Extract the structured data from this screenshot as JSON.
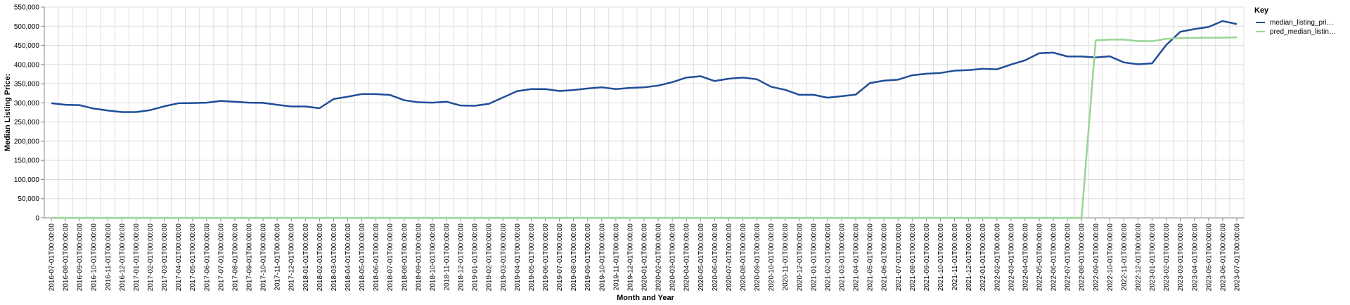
{
  "chart_data": {
    "type": "line",
    "xlabel": "Month and Year",
    "ylabel": "Median Listing Price:",
    "ylim": [
      0,
      550000
    ],
    "y_ticks": [
      "0",
      "50,000",
      "100,000",
      "150,000",
      "200,000",
      "250,000",
      "300,000",
      "350,000",
      "400,000",
      "450,000",
      "500,000",
      "550,000"
    ],
    "grid": true,
    "legend": {
      "title": "Key",
      "position": "right",
      "labels": [
        "median_listing_pri…",
        "pred_median_listin…"
      ]
    },
    "x": [
      "2016-07-01T00:00:00",
      "2016-08-01T00:00:00",
      "2016-09-01T00:00:00",
      "2016-10-01T00:00:00",
      "2016-11-01T00:00:00",
      "2016-12-01T00:00:00",
      "2017-01-01T00:00:00",
      "2017-02-01T00:00:00",
      "2017-03-01T00:00:00",
      "2017-04-01T00:00:00",
      "2017-05-01T00:00:00",
      "2017-06-01T00:00:00",
      "2017-07-01T00:00:00",
      "2017-08-01T00:00:00",
      "2017-09-01T00:00:00",
      "2017-10-01T00:00:00",
      "2017-11-01T00:00:00",
      "2017-12-01T00:00:00",
      "2018-01-01T00:00:00",
      "2018-02-01T00:00:00",
      "2018-03-01T00:00:00",
      "2018-04-01T00:00:00",
      "2018-05-01T00:00:00",
      "2018-06-01T00:00:00",
      "2018-07-01T00:00:00",
      "2018-08-01T00:00:00",
      "2018-09-01T00:00:00",
      "2018-10-01T00:00:00",
      "2018-11-01T00:00:00",
      "2018-12-01T00:00:00",
      "2019-01-01T00:00:00",
      "2019-02-01T00:00:00",
      "2019-03-01T00:00:00",
      "2019-04-01T00:00:00",
      "2019-05-01T00:00:00",
      "2019-06-01T00:00:00",
      "2019-07-01T00:00:00",
      "2019-08-01T00:00:00",
      "2019-09-01T00:00:00",
      "2019-10-01T00:00:00",
      "2019-11-01T00:00:00",
      "2019-12-01T00:00:00",
      "2020-01-01T00:00:00",
      "2020-02-01T00:00:00",
      "2020-03-01T00:00:00",
      "2020-04-01T00:00:00",
      "2020-05-01T00:00:00",
      "2020-06-01T00:00:00",
      "2020-07-01T00:00:00",
      "2020-08-01T00:00:00",
      "2020-09-01T00:00:00",
      "2020-10-01T00:00:00",
      "2020-11-01T00:00:00",
      "2020-12-01T00:00:00",
      "2021-01-01T00:00:00",
      "2021-02-01T00:00:00",
      "2021-03-01T00:00:00",
      "2021-04-01T00:00:00",
      "2021-05-01T00:00:00",
      "2021-06-01T00:00:00",
      "2021-07-01T00:00:00",
      "2021-08-01T00:00:00",
      "2021-09-01T00:00:00",
      "2021-10-01T00:00:00",
      "2021-11-01T00:00:00",
      "2021-12-01T00:00:00",
      "2022-01-01T00:00:00",
      "2022-02-01T00:00:00",
      "2022-03-01T00:00:00",
      "2022-04-01T00:00:00",
      "2022-05-01T00:00:00",
      "2022-06-01T00:00:00",
      "2022-07-01T00:00:00",
      "2022-08-01T00:00:00",
      "2022-09-01T00:00:00",
      "2022-10-01T00:00:00",
      "2022-11-01T00:00:00",
      "2022-12-01T00:00:00",
      "2023-01-01T00:00:00",
      "2023-02-01T00:00:00",
      "2023-03-01T00:00:00",
      "2023-04-01T00:00:00",
      "2023-05-01T00:00:00",
      "2023-06-01T00:00:00",
      "2023-07-01T00:00:00"
    ],
    "series": [
      {
        "name": "median_listing_pri…",
        "color": "#1f4e99",
        "values": [
          299000,
          295000,
          294000,
          285000,
          280000,
          276000,
          276000,
          281000,
          291000,
          299000,
          299500,
          300500,
          305000,
          303000,
          300500,
          300000,
          295000,
          290500,
          290500,
          286000,
          310000,
          316000,
          323000,
          323000,
          320500,
          307000,
          301500,
          300500,
          303000,
          293000,
          292500,
          297500,
          314000,
          330500,
          336000,
          336000,
          331000,
          333500,
          337500,
          340500,
          336000,
          339000,
          340500,
          345000,
          354000,
          366000,
          369500,
          357000,
          363000,
          366000,
          361500,
          342000,
          334000,
          321000,
          321000,
          313500,
          317500,
          321500,
          351500,
          358000,
          360500,
          372000,
          376000,
          378000,
          384000,
          385500,
          389000,
          387500,
          400000,
          411000,
          429500,
          431000,
          421000,
          421000,
          418500,
          421500,
          405500,
          400500,
          403000,
          451000,
          485500,
          492500,
          498000,
          513500,
          505500
        ]
      },
      {
        "name": "pred_median_listin…",
        "color": "#98d594",
        "values": [
          0,
          0,
          0,
          0,
          0,
          0,
          0,
          0,
          0,
          0,
          0,
          0,
          0,
          0,
          0,
          0,
          0,
          0,
          0,
          0,
          0,
          0,
          0,
          0,
          0,
          0,
          0,
          0,
          0,
          0,
          0,
          0,
          0,
          0,
          0,
          0,
          0,
          0,
          0,
          0,
          0,
          0,
          0,
          0,
          0,
          0,
          0,
          0,
          0,
          0,
          0,
          0,
          0,
          0,
          0,
          0,
          0,
          0,
          0,
          0,
          0,
          0,
          0,
          0,
          0,
          0,
          0,
          0,
          0,
          0,
          0,
          0,
          0,
          0,
          463000,
          465000,
          465000,
          461000,
          461000,
          467000,
          469000,
          469500,
          470000,
          470000,
          471000
        ]
      }
    ]
  }
}
